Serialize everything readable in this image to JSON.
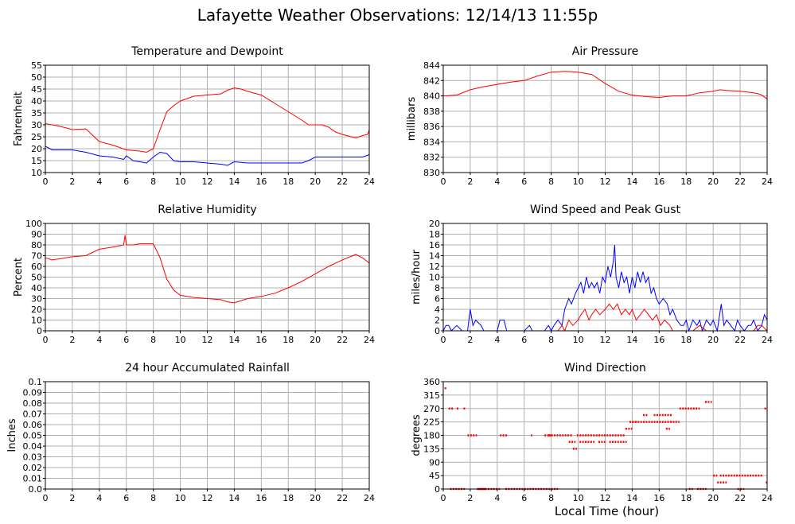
{
  "title": "Lafayette Weather Observations: 12/14/13 11:55p",
  "xlabel": "Local Time (hour)",
  "colors": {
    "red": "#ff0000",
    "blue": "#0000ff",
    "grid": "#b0b0b0",
    "frame": "#000000"
  },
  "chart_data": [
    {
      "id": "temp",
      "type": "line",
      "title": "Temperature and Dewpoint",
      "ylabel": "Fahrenheit",
      "xlim": [
        0,
        24
      ],
      "ylim": [
        10,
        55
      ],
      "yticks": [
        10,
        15,
        20,
        25,
        30,
        35,
        40,
        45,
        50,
        55
      ],
      "xticks": [
        0,
        2,
        4,
        6,
        8,
        10,
        12,
        14,
        16,
        18,
        20,
        22,
        24
      ],
      "series": [
        {
          "color": "#ff0000",
          "x": [
            0,
            1,
            2,
            3,
            4,
            5,
            6,
            7,
            7.5,
            8,
            8.5,
            9,
            9.5,
            10,
            11,
            12,
            13,
            13.5,
            14,
            14.5,
            15,
            16,
            17,
            18,
            19,
            19.5,
            20,
            20.5,
            21,
            21.5,
            22,
            23,
            23.5,
            23.9,
            24
          ],
          "y": [
            30.5,
            29.5,
            28,
            28.3,
            23,
            21.5,
            19.5,
            19,
            18.5,
            20,
            28,
            35.5,
            38,
            40,
            42,
            42.5,
            43,
            44.5,
            45.5,
            45,
            44,
            42.5,
            39,
            35.5,
            32,
            30,
            30,
            30,
            29,
            27,
            26,
            24.5,
            25.5,
            26,
            28
          ]
        },
        {
          "color": "#0000ff",
          "x": [
            0,
            0.5,
            1,
            2,
            3,
            4,
            5,
            5.8,
            6,
            6.5,
            7,
            7.5,
            8,
            8.5,
            9,
            9.5,
            10,
            11,
            12,
            13,
            13.5,
            14,
            15,
            16,
            17,
            18,
            19,
            19.5,
            20,
            20.5,
            21,
            22,
            23,
            23.5,
            24
          ],
          "y": [
            21,
            19.5,
            19.5,
            19.5,
            18.5,
            17,
            16.5,
            15.5,
            17,
            15,
            14.5,
            14,
            16.5,
            18.5,
            18,
            15,
            14.5,
            14.5,
            14,
            13.5,
            13,
            14.5,
            14,
            14,
            14,
            14,
            14,
            15,
            16.5,
            16.5,
            16.5,
            16.5,
            16.5,
            16.5,
            17.5
          ]
        }
      ]
    },
    {
      "id": "press",
      "type": "line",
      "title": "Air Pressure",
      "ylabel": "millibars",
      "xlim": [
        0,
        24
      ],
      "ylim": [
        830,
        844
      ],
      "yticks": [
        830,
        832,
        834,
        836,
        838,
        840,
        842,
        844
      ],
      "xticks": [
        0,
        2,
        4,
        6,
        8,
        10,
        12,
        14,
        16,
        18,
        20,
        22,
        24
      ],
      "series": [
        {
          "color": "#ff0000",
          "x": [
            0,
            1,
            2,
            3,
            4,
            5,
            6,
            7,
            8,
            9,
            10,
            11,
            12,
            13,
            14,
            15,
            16,
            17,
            18,
            19,
            20,
            20.5,
            21,
            22,
            23,
            23.5,
            24
          ],
          "y": [
            840,
            840.1,
            840.8,
            841.2,
            841.5,
            841.8,
            842,
            842.6,
            843.1,
            843.2,
            843.1,
            842.8,
            841.6,
            840.6,
            840.1,
            839.9,
            839.8,
            840,
            840,
            840.4,
            840.6,
            840.8,
            840.7,
            840.6,
            840.4,
            840.2,
            839.6
          ]
        }
      ]
    },
    {
      "id": "rh",
      "type": "line",
      "title": "Relative Humidity",
      "ylabel": "Percent",
      "xlim": [
        0,
        24
      ],
      "ylim": [
        0,
        100
      ],
      "yticks": [
        0,
        10,
        20,
        30,
        40,
        50,
        60,
        70,
        80,
        90,
        100
      ],
      "xticks": [
        0,
        2,
        4,
        6,
        8,
        10,
        12,
        14,
        16,
        18,
        20,
        22,
        24
      ],
      "series": [
        {
          "color": "#ff0000",
          "x": [
            0,
            0.5,
            1,
            2,
            3,
            4,
            5,
            5.8,
            5.9,
            6,
            6.1,
            6.5,
            7,
            8,
            8.5,
            9,
            9.5,
            10,
            11,
            12,
            13,
            13.5,
            14,
            15,
            16,
            17,
            18,
            19,
            20,
            21,
            22,
            23,
            23.5,
            24
          ],
          "y": [
            68,
            66,
            67,
            69,
            70,
            76,
            78,
            80,
            89,
            80,
            80,
            80,
            81,
            81,
            68,
            48,
            38,
            33,
            31,
            30,
            29,
            27,
            26,
            30,
            32,
            35,
            40,
            46,
            53,
            60,
            66,
            71,
            68,
            63
          ]
        }
      ]
    },
    {
      "id": "wind",
      "type": "line",
      "title": "Wind Speed and Peak Gust",
      "ylabel": "miles/hour",
      "xlim": [
        0,
        24
      ],
      "ylim": [
        0,
        20
      ],
      "yticks": [
        0,
        2,
        4,
        6,
        8,
        10,
        12,
        14,
        16,
        18,
        20
      ],
      "xticks": [
        0,
        2,
        4,
        6,
        8,
        10,
        12,
        14,
        16,
        18,
        20,
        22,
        24
      ],
      "series": [
        {
          "color": "#0000ff",
          "x": [
            0,
            0.2,
            0.4,
            0.6,
            1,
            1.4,
            1.8,
            2,
            2.2,
            2.4,
            2.8,
            3,
            4,
            4.2,
            4.5,
            4.7,
            5,
            6,
            6.4,
            6.6,
            7,
            7.5,
            7.8,
            8,
            8.2,
            8.5,
            8.8,
            9,
            9.3,
            9.5,
            9.8,
            10,
            10.2,
            10.4,
            10.6,
            10.8,
            11,
            11.2,
            11.4,
            11.6,
            11.8,
            12,
            12.2,
            12.4,
            12.6,
            12.7,
            12.8,
            13,
            13.2,
            13.4,
            13.6,
            13.8,
            14,
            14.2,
            14.4,
            14.6,
            14.8,
            15,
            15.2,
            15.4,
            15.6,
            15.8,
            16,
            16.3,
            16.6,
            16.8,
            17,
            17.3,
            17.6,
            17.8,
            18,
            18.2,
            18.5,
            18.8,
            19,
            19.2,
            19.5,
            19.8,
            20,
            20.3,
            20.6,
            20.8,
            21,
            21.3,
            21.6,
            21.8,
            22,
            22.3,
            22.6,
            22.8,
            23,
            23.3,
            23.6,
            23.8,
            24
          ],
          "y": [
            0,
            1,
            1,
            0,
            1,
            0,
            0,
            4,
            1,
            2,
            1,
            0,
            0,
            2,
            2,
            0,
            0,
            0,
            1,
            0,
            0,
            0,
            1,
            0,
            1,
            2,
            1,
            4,
            6,
            5,
            7,
            8,
            9,
            7,
            10,
            8,
            9,
            8,
            9,
            7,
            10,
            9,
            12,
            10,
            13,
            16,
            10,
            8,
            11,
            9,
            10,
            7,
            10,
            8,
            11,
            9,
            11,
            9,
            10,
            7,
            8,
            6,
            5,
            6,
            5,
            3,
            4,
            2,
            1,
            1,
            2,
            0,
            2,
            1,
            2,
            0,
            2,
            1,
            2,
            0,
            5,
            1,
            2,
            1,
            0,
            2,
            1,
            0,
            1,
            1,
            2,
            0,
            1,
            3,
            2
          ]
        },
        {
          "color": "#ff0000",
          "x": [
            0,
            0.5,
            1,
            1.5,
            2,
            3,
            4,
            5,
            6,
            7,
            8,
            8.5,
            8.8,
            9,
            9.3,
            9.6,
            10,
            10.2,
            10.5,
            10.8,
            11,
            11.3,
            11.6,
            12,
            12.3,
            12.6,
            12.9,
            13.2,
            13.5,
            13.8,
            14,
            14.3,
            14.6,
            14.9,
            15.2,
            15.5,
            15.8,
            16.1,
            16.4,
            16.8,
            17,
            17.5,
            18,
            18.5,
            19,
            19.5,
            20,
            20.3,
            20.6,
            21,
            21.5,
            22,
            22.5,
            23,
            23.3,
            23.6,
            24
          ],
          "y": [
            0,
            0,
            0,
            0,
            0,
            0,
            0,
            0,
            0,
            0,
            0,
            0,
            1,
            0,
            2,
            1,
            2,
            3,
            4,
            2,
            3,
            4,
            3,
            4,
            5,
            4,
            5,
            3,
            4,
            3,
            4,
            2,
            3,
            4,
            3,
            2,
            3,
            1,
            2,
            1,
            0,
            0,
            0,
            0,
            1,
            0,
            0,
            0,
            0,
            0,
            0,
            0,
            0,
            0,
            1,
            1,
            0
          ]
        }
      ]
    },
    {
      "id": "rain",
      "type": "line",
      "title": "24 hour Accumulated Rainfall",
      "ylabel": "Inches",
      "xlim": [
        0,
        24
      ],
      "ylim": [
        0,
        0.1
      ],
      "yticks": [
        0.0,
        0.01,
        0.02,
        0.03,
        0.04,
        0.05,
        0.06,
        0.07,
        0.08,
        0.09,
        0.1
      ],
      "ytick_labels": [
        "0.0",
        "0.01",
        "0.02",
        "0.03",
        "0.04",
        "0.05",
        "0.06",
        "0.07",
        "0.08",
        "0.09",
        "0.1"
      ],
      "xticks": [
        0,
        2,
        4,
        6,
        8,
        10,
        12,
        14,
        16,
        18,
        20,
        22,
        24
      ],
      "series": [
        {
          "color": "#ff0000",
          "x": [
            0,
            24
          ],
          "y": [
            0,
            0
          ]
        }
      ]
    },
    {
      "id": "dir",
      "type": "scatter",
      "title": "Wind Direction",
      "ylabel": "degrees",
      "xlim": [
        0,
        24
      ],
      "ylim": [
        0,
        360
      ],
      "yticks": [
        0,
        45,
        90,
        135,
        180,
        225,
        270,
        315,
        360
      ],
      "xticks": [
        0,
        2,
        4,
        6,
        8,
        10,
        12,
        14,
        16,
        18,
        20,
        22,
        24
      ],
      "series": [
        {
          "color": "#ff0000",
          "segments": [
            [
              0.1,
              0.3,
              338
            ],
            [
              0.4,
              0.8,
              270
            ],
            [
              0.5,
              1.6,
              0
            ],
            [
              1.0,
              1.2,
              270
            ],
            [
              1.5,
              1.7,
              270
            ],
            [
              1.8,
              2.5,
              180
            ],
            [
              2.6,
              3.2,
              0
            ],
            [
              2.5,
              4.2,
              0
            ],
            [
              4.2,
              4.8,
              180
            ],
            [
              4.6,
              6.8,
              0
            ],
            [
              6.5,
              6.6,
              180
            ],
            [
              7.5,
              8.0,
              180
            ],
            [
              6.8,
              8.5,
              0
            ],
            [
              7.8,
              9.6,
              180
            ],
            [
              9.3,
              9.8,
              158
            ],
            [
              9.6,
              9.9,
              135
            ],
            [
              9.9,
              13.5,
              180
            ],
            [
              10.1,
              11.2,
              158
            ],
            [
              11.5,
              12.0,
              158
            ],
            [
              12.3,
              13.6,
              158
            ],
            [
              13.5,
              14.0,
              202
            ],
            [
              13.8,
              14.4,
              225
            ],
            [
              14.0,
              17.5,
              225
            ],
            [
              14.8,
              15.2,
              248
            ],
            [
              15.6,
              17.0,
              248
            ],
            [
              16.5,
              16.8,
              202
            ],
            [
              17.5,
              19.0,
              270
            ],
            [
              18.2,
              18.5,
              0
            ],
            [
              18.8,
              19.5,
              0
            ],
            [
              19.4,
              19.9,
              292
            ],
            [
              20.0,
              20.3,
              45
            ],
            [
              20.3,
              21.0,
              22
            ],
            [
              20.5,
              23.7,
              45
            ],
            [
              21.8,
              22.3,
              0
            ],
            [
              23.8,
              24.0,
              270
            ],
            [
              23.9,
              24.0,
              22
            ]
          ]
        }
      ]
    }
  ]
}
